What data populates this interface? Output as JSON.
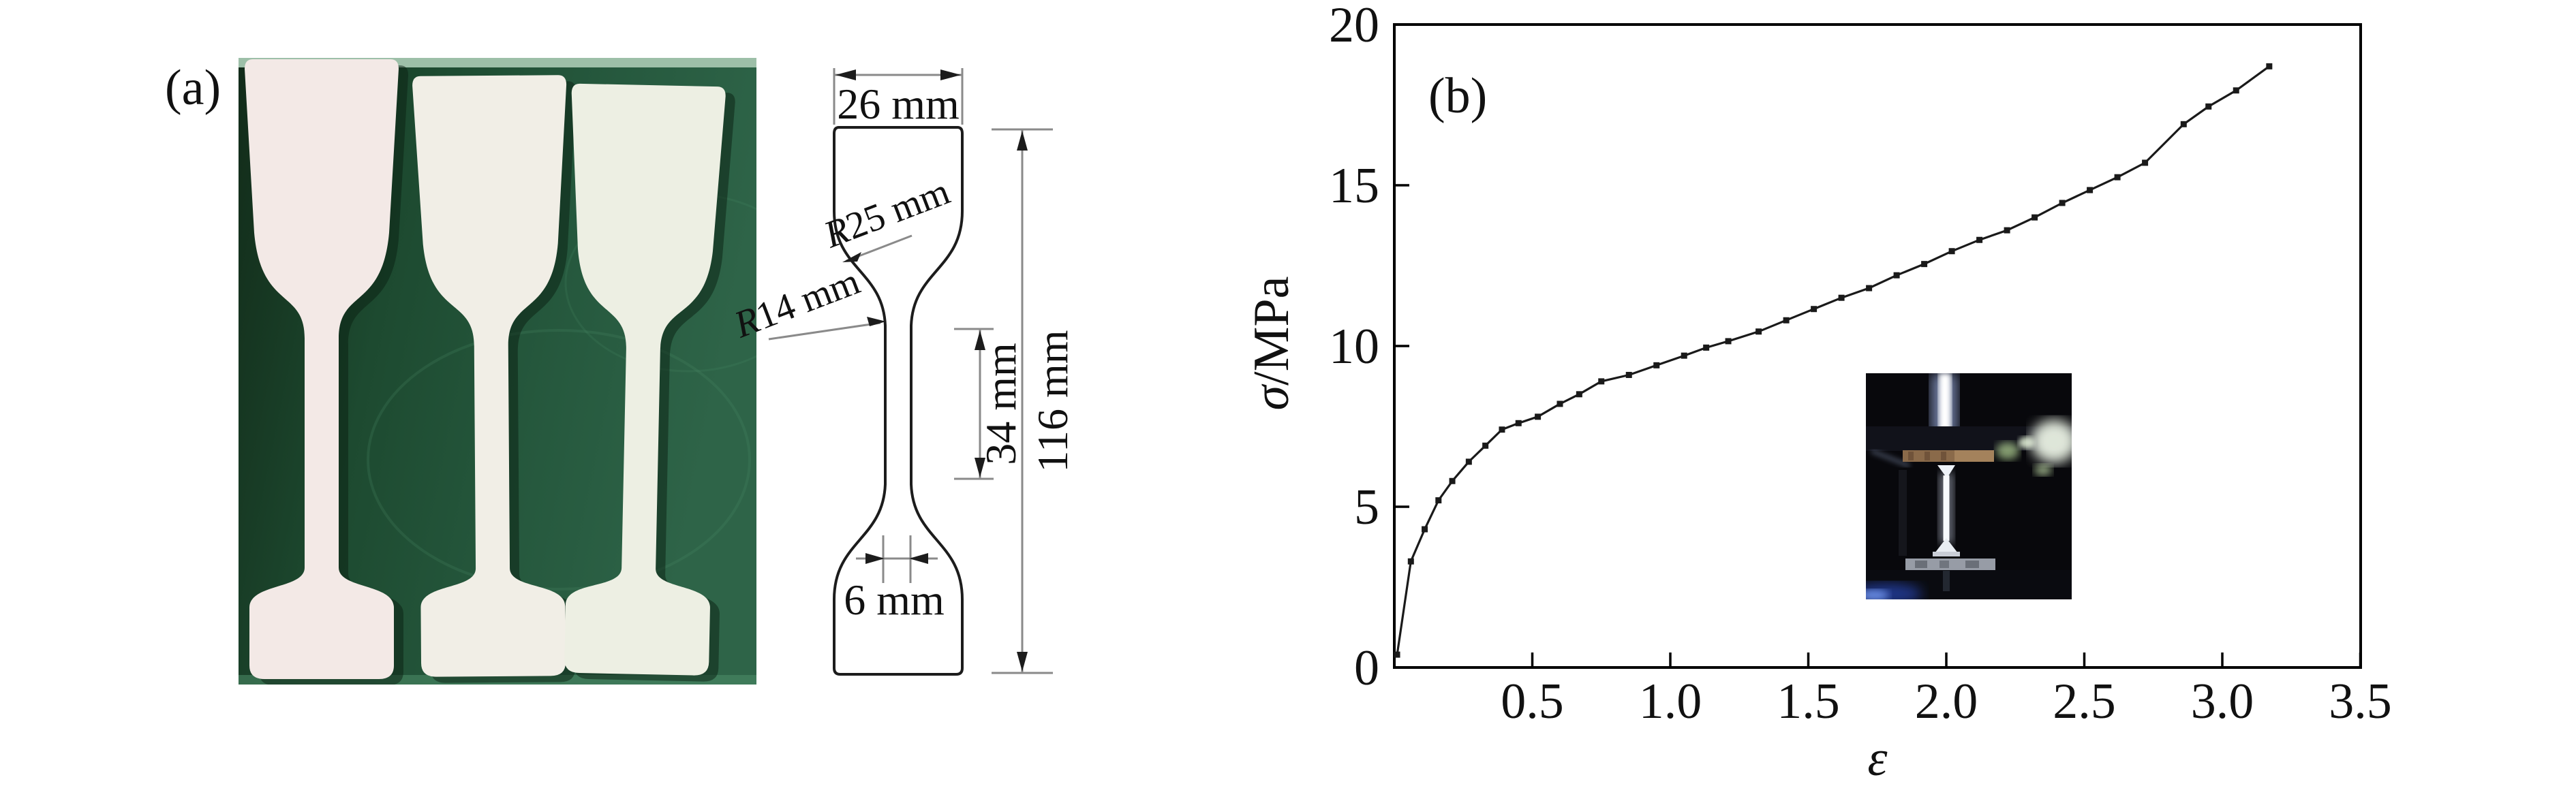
{
  "figure": {
    "panel_a": {
      "label": "(a)",
      "photo": {
        "description": "three white dog-bone tensile specimens lying on a dark green cutting mat",
        "specimen_count": 3
      },
      "drawing": {
        "top_width": "26 mm",
        "shoulder_radius": "R25 mm",
        "shoulder_radius_prefix": "R",
        "shoulder_radius_value": "25 mm",
        "fillet_radius": "R14 mm",
        "fillet_radius_prefix": "R",
        "fillet_radius_value": "14 mm",
        "gauge_length": "34 mm",
        "total_length": "116 mm",
        "gauge_width": "6 mm"
      }
    },
    "panel_b": {
      "label": "(b)",
      "inset": {
        "description": "photo of tensile testing machine stretching a white specimen"
      }
    }
  },
  "chart_data": {
    "type": "line",
    "title": "",
    "xlabel": "ε",
    "ylabel": "σ/MPa",
    "ylabel_symbol": "σ",
    "ylabel_unit": "/MPa",
    "xlim": [
      0,
      3.5
    ],
    "ylim": [
      0,
      20
    ],
    "x_ticks": [
      0.5,
      1.0,
      1.5,
      2.0,
      2.5,
      3.0,
      3.5
    ],
    "x_tick_labels": [
      "0.5",
      "1.0",
      "1.5",
      "2.0",
      "2.5",
      "3.0",
      "3.5"
    ],
    "y_ticks": [
      0,
      5,
      10,
      15,
      20
    ],
    "y_tick_labels": [
      "0",
      "5",
      "10",
      "15",
      "20"
    ],
    "grid": false,
    "legend_position": "none",
    "marker": "square",
    "line_color": "#1a1a1a",
    "series": [
      {
        "name": "stress-strain curve",
        "x": [
          0.01,
          0.06,
          0.11,
          0.16,
          0.21,
          0.27,
          0.33,
          0.39,
          0.45,
          0.52,
          0.6,
          0.67,
          0.75,
          0.85,
          0.95,
          1.05,
          1.13,
          1.21,
          1.32,
          1.42,
          1.52,
          1.62,
          1.72,
          1.82,
          1.92,
          2.02,
          2.12,
          2.22,
          2.32,
          2.42,
          2.52,
          2.62,
          2.72,
          2.86,
          2.95,
          3.05,
          3.17
        ],
        "y": [
          0.4,
          3.3,
          4.3,
          5.2,
          5.8,
          6.4,
          6.9,
          7.4,
          7.6,
          7.8,
          8.2,
          8.5,
          8.9,
          9.1,
          9.4,
          9.7,
          9.95,
          10.15,
          10.45,
          10.8,
          11.15,
          11.5,
          11.8,
          12.2,
          12.55,
          12.95,
          13.3,
          13.6,
          14.0,
          14.45,
          14.85,
          15.25,
          15.7,
          16.9,
          17.45,
          17.95,
          18.7
        ]
      }
    ]
  },
  "colors": {
    "mat_green_dark": "#16341f",
    "mat_green_mid": "#23573c",
    "mat_green_edge": "#9dbfa8",
    "specimen_white": "#f2efe8",
    "curve_black": "#1a1a1a",
    "dimension_gray": "#8a8a8a",
    "inset_background": "#08080c",
    "inset_grip_brown": "#8a6a4a",
    "inset_glow_blue": "#2f52d8"
  }
}
